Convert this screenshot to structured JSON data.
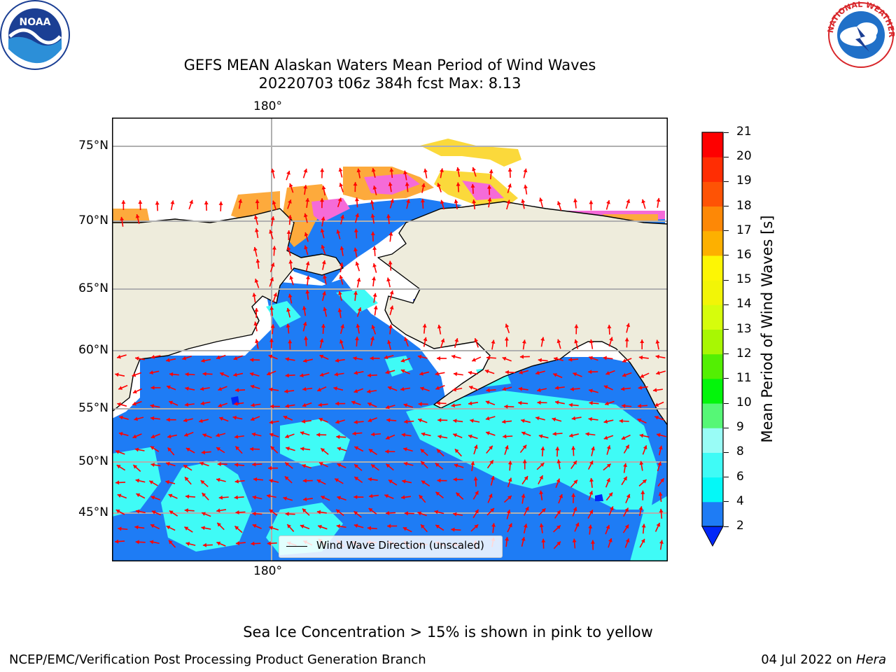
{
  "title": {
    "line1": "GEFS MEAN Alaskan Waters Mean Period of Wind Waves",
    "line2": "20220703 t06z 384h fcst   Max: 8.13"
  },
  "map": {
    "lon_label_top": "180°",
    "lon_label_bottom": "180°",
    "lat_labels": [
      "75°N",
      "70°N",
      "65°N",
      "60°N",
      "55°N",
      "50°N",
      "45°N"
    ],
    "legend_label": "Wind Wave Direction (unscaled)",
    "colors": {
      "land": "#eeecdc",
      "ocean_low": "#1e7cf5",
      "ocean_mid": "#3ffbf6",
      "ice_pink": "#f56bd8",
      "ice_orange": "#fdaa3c",
      "ice_yellow": "#fbd93b",
      "arrow": "#ff0000",
      "gridline": "#b0b0b0"
    }
  },
  "colorbar": {
    "label": "Mean Period of Wind Waves [s]",
    "ticks": [
      "2",
      "4",
      "6",
      "8",
      "9",
      "10",
      "11",
      "12",
      "13",
      "14",
      "15",
      "16",
      "17",
      "18",
      "19",
      "20",
      "21"
    ],
    "colors": [
      "#0127f8",
      "#1e7cf5",
      "#04f8f7",
      "#3ffbf6",
      "#99fcf6",
      "#56f776",
      "#03f50b",
      "#53ef03",
      "#a8f703",
      "#d6fd0c",
      "#f2f507",
      "#fdf604",
      "#fdb000",
      "#fd8806",
      "#fe5305",
      "#ff2d03",
      "#fe0000"
    ]
  },
  "notes": {
    "ice": "Sea Ice Concentration > 15% is shown in pink to yellow",
    "credit": "NCEP/EMC/Verification Post Processing Product Generation Branch",
    "date": "04 Jul 2022 on ",
    "host": "Hera"
  },
  "logos": {
    "noaa": "NOAA",
    "nws_ring": "NATIONAL WEATHER SERVICE"
  }
}
